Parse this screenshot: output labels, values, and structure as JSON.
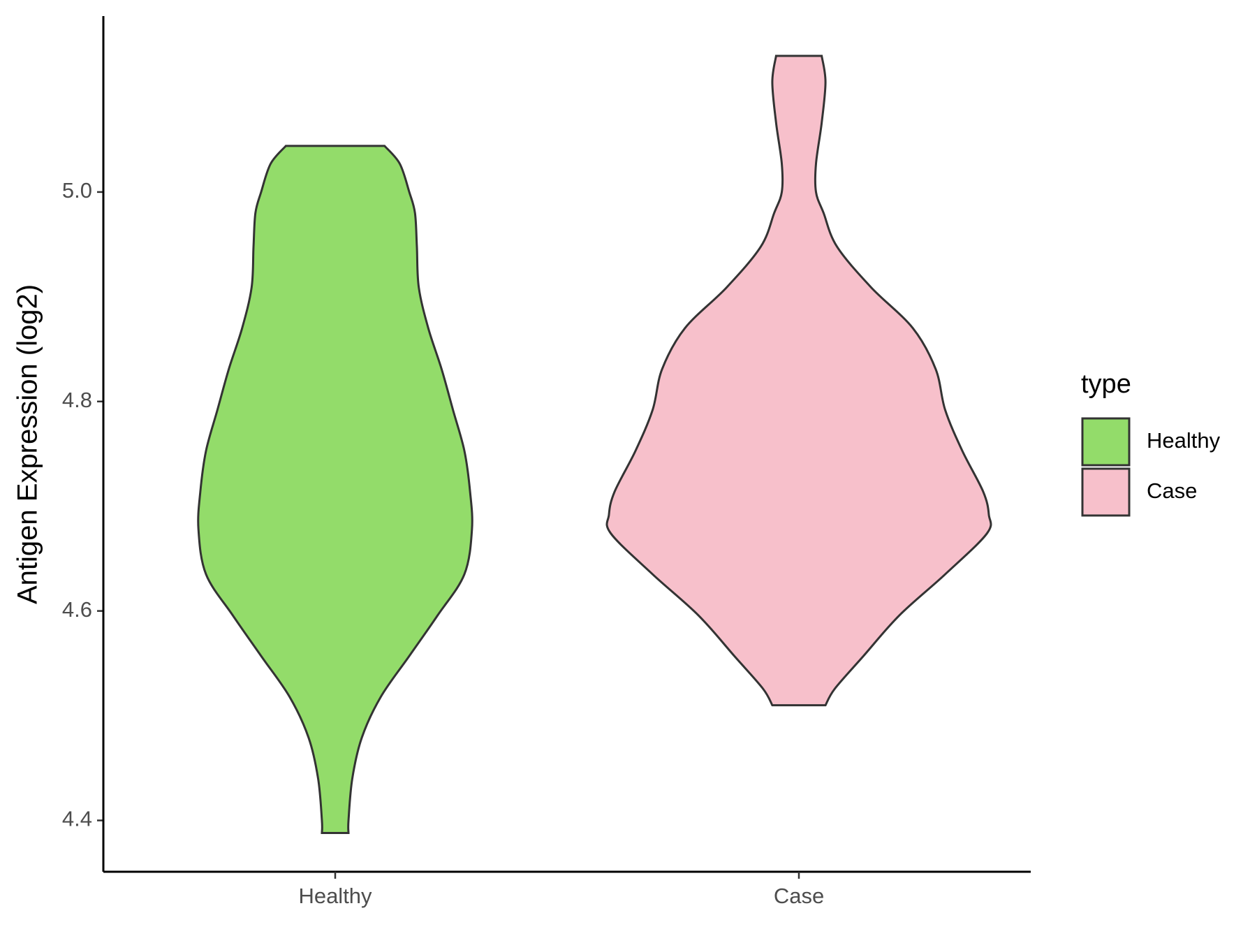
{
  "chart_data": {
    "type": "violin",
    "y_label": "Antigen Expression (log2)",
    "categories": [
      "Healthy",
      "Case"
    ],
    "legend_title": "type",
    "legend_position": "right",
    "ylim": [
      4.351,
      5.168
    ],
    "yticks": [
      {
        "value": 4.4,
        "label": "4.4"
      },
      4.6,
      4.8,
      {
        "value": 5.0,
        "label": "5.0"
      }
    ],
    "series": [
      {
        "name": "Healthy",
        "color": "#93dc6a",
        "y": [
          5.044,
          5.027,
          5.0,
          4.98,
          4.948,
          4.909,
          4.87,
          4.831,
          4.792,
          4.753,
          4.714,
          4.678,
          4.635,
          4.596,
          4.557,
          4.518,
          4.479,
          4.44,
          4.4,
          4.388
        ],
        "density": [
          0.26,
          0.34,
          0.39,
          0.42,
          0.43,
          0.44,
          0.49,
          0.56,
          0.62,
          0.68,
          0.71,
          0.72,
          0.68,
          0.54,
          0.39,
          0.24,
          0.14,
          0.09,
          0.07,
          0.07
        ]
      },
      {
        "name": "Case",
        "color": "#f7c0cb",
        "y": [
          5.13,
          5.105,
          5.066,
          5.027,
          5.0,
          4.98,
          4.948,
          4.909,
          4.87,
          4.831,
          4.792,
          4.753,
          4.714,
          4.692,
          4.674,
          4.635,
          4.596,
          4.557,
          4.526,
          4.51
        ],
        "density": [
          0.12,
          0.14,
          0.12,
          0.09,
          0.09,
          0.13,
          0.2,
          0.38,
          0.6,
          0.72,
          0.77,
          0.86,
          0.97,
          1.0,
          0.99,
          0.77,
          0.53,
          0.34,
          0.19,
          0.14
        ]
      }
    ]
  }
}
